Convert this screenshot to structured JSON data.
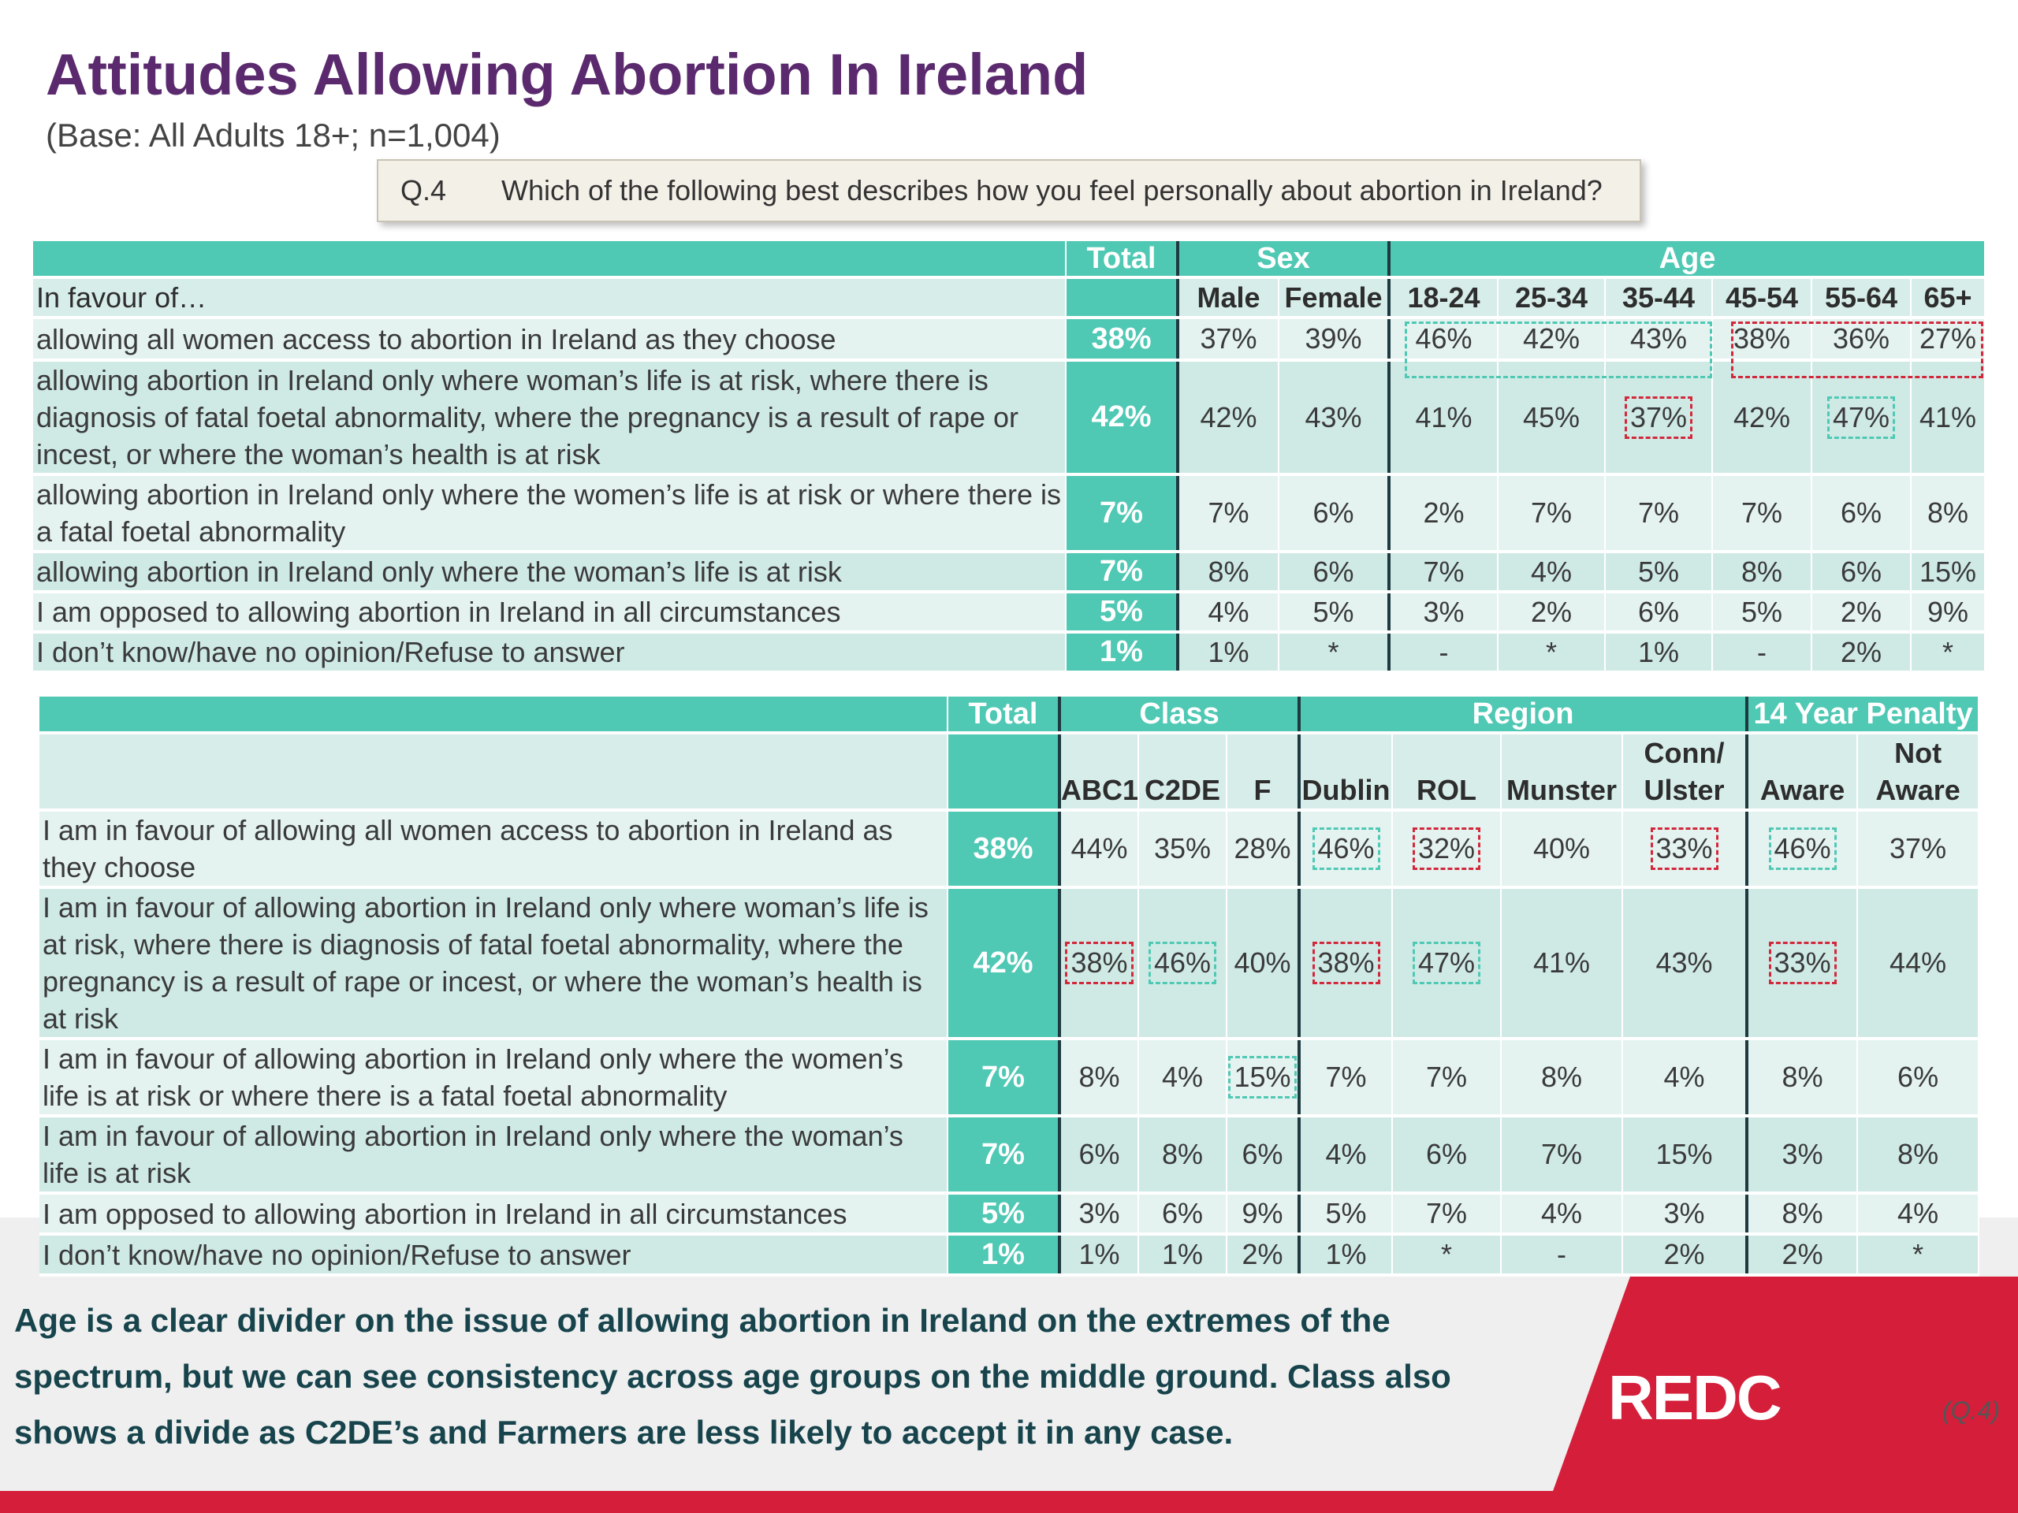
{
  "title": "Attitudes Allowing Abortion In Ireland",
  "subtitle": "(Base: All Adults 18+; n=1,004)",
  "question": {
    "number": "Q.4",
    "text": "Which of the following best describes how you feel personally about abortion in Ireland?"
  },
  "table1": {
    "group_headers": {
      "total": "Total",
      "sex": "Sex",
      "age": "Age"
    },
    "header_label": "In favour of…",
    "columns": [
      "Male",
      "Female",
      "18-24",
      "25-34",
      "35-44",
      "45-54",
      "55-64",
      "65+"
    ],
    "rows": [
      {
        "label": "allowing all women access to abortion in Ireland as they choose",
        "total": "38%",
        "values": [
          "37%",
          "39%",
          "46%",
          "42%",
          "43%",
          "38%",
          "36%",
          "27%"
        ]
      },
      {
        "label": "allowing abortion in Ireland only where woman’s life is at risk, where there is diagnosis of fatal foetal abnormality, where the pregnancy is a result of rape or incest, or where the woman’s health is at risk",
        "total": "42%",
        "values": [
          "42%",
          "43%",
          "41%",
          "45%",
          "37%",
          "42%",
          "47%",
          "41%"
        ]
      },
      {
        "label": "allowing abortion in Ireland only where the women’s life is at risk or where there is a fatal foetal abnormality",
        "total": "7%",
        "values": [
          "7%",
          "6%",
          "2%",
          "7%",
          "7%",
          "7%",
          "6%",
          "8%"
        ]
      },
      {
        "label": "allowing abortion in Ireland only where the woman’s life is at risk",
        "total": "7%",
        "values": [
          "8%",
          "6%",
          "7%",
          "4%",
          "5%",
          "8%",
          "6%",
          "15%"
        ]
      },
      {
        "label": "I am opposed to allowing abortion in Ireland in all circumstances",
        "total": "5%",
        "values": [
          "4%",
          "5%",
          "3%",
          "2%",
          "6%",
          "5%",
          "2%",
          "9%"
        ]
      },
      {
        "label": "I don’t know/have no opinion/Refuse to answer",
        "total": "1%",
        "values": [
          "1%",
          "*",
          "-",
          "*",
          "1%",
          "-",
          "2%",
          "*"
        ]
      }
    ]
  },
  "table2": {
    "group_headers": {
      "total": "Total",
      "class": "Class",
      "region": "Region",
      "penalty": "14 Year Penalty"
    },
    "columns": [
      {
        "top": "",
        "bottom": "ABC1"
      },
      {
        "top": "",
        "bottom": "C2DE"
      },
      {
        "top": "",
        "bottom": "F"
      },
      {
        "top": "",
        "bottom": "Dublin"
      },
      {
        "top": "",
        "bottom": "ROL"
      },
      {
        "top": "",
        "bottom": "Munster"
      },
      {
        "top": "Conn/",
        "bottom": "Ulster"
      },
      {
        "top": "",
        "bottom": "Aware"
      },
      {
        "top": "Not",
        "bottom": "Aware"
      }
    ],
    "rows": [
      {
        "label": "I am in favour of allowing all women access to abortion in Ireland as they choose",
        "total": "38%",
        "values": [
          "44%",
          "35%",
          "28%",
          "46%",
          "32%",
          "40%",
          "33%",
          "46%",
          "37%"
        ]
      },
      {
        "label": "I am in favour of allowing abortion in Ireland only where woman’s life is at risk, where there is diagnosis of fatal foetal abnormality, where the pregnancy is a result of rape or incest, or where the woman’s health is at risk",
        "total": "42%",
        "values": [
          "38%",
          "46%",
          "40%",
          "38%",
          "47%",
          "41%",
          "43%",
          "33%",
          "44%"
        ]
      },
      {
        "label": "I am in favour of allowing abortion in Ireland only where the women’s life is at risk or where there is a fatal foetal abnormality",
        "total": "7%",
        "values": [
          "8%",
          "4%",
          "15%",
          "7%",
          "7%",
          "8%",
          "4%",
          "8%",
          "6%"
        ]
      },
      {
        "label": "I am in favour of allowing abortion in Ireland only where the woman’s life is at risk",
        "total": "7%",
        "values": [
          "6%",
          "8%",
          "6%",
          "4%",
          "6%",
          "7%",
          "15%",
          "3%",
          "8%"
        ]
      },
      {
        "label": "I am opposed to allowing abortion in Ireland in all circumstances",
        "total": "5%",
        "values": [
          "3%",
          "6%",
          "9%",
          "5%",
          "7%",
          "4%",
          "3%",
          "8%",
          "4%"
        ]
      },
      {
        "label": "I don’t know/have no opinion/Refuse to answer",
        "total": "1%",
        "values": [
          "1%",
          "1%",
          "2%",
          "1%",
          "*",
          "-",
          "2%",
          "2%",
          "*"
        ]
      }
    ]
  },
  "conclusion": "Age is a clear divider on the issue of allowing abortion in Ireland on the extremes of the spectrum, but we can see consistency across age groups on the middle ground. Class also shows a divide as C2DE’s and Farmers are less likely to accept it in any case.",
  "logo_text": "REDC",
  "question_ref": "(Q.4)",
  "colors": {
    "title": "#5b2a6e",
    "header_band": "#4fc8b4",
    "row_light": "#e4f3f0",
    "row_dark": "#cfeae5",
    "highlight_red": "#d2283c",
    "highlight_teal": "#4fc8b4",
    "brand_red": "#d51f3a",
    "conclusion_text": "#17444c"
  }
}
